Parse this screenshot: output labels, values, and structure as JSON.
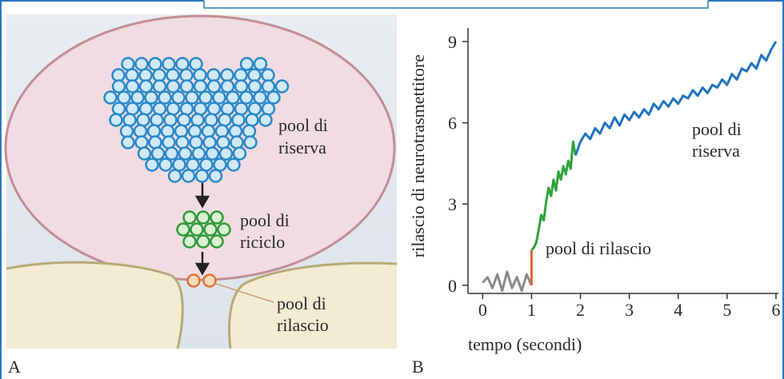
{
  "panel_a": {
    "letter": "A",
    "reserve_label": [
      "pool di",
      "riserva"
    ],
    "recycle_label": [
      "pool di",
      "riciclo"
    ],
    "release_label": [
      "pool di",
      "rilascio"
    ]
  },
  "chart_data": {
    "type": "line",
    "panel_letter": "B",
    "ylabel": "rilascio di neurotrasmettitore",
    "xlabel": "tempo (secondi)",
    "annotations": [
      "pool di rilascio",
      "pool di",
      "riserva"
    ],
    "xlim": [
      -0.3,
      6.05
    ],
    "ylim": [
      -0.3,
      9.5
    ],
    "xticks": [
      0,
      1,
      2,
      3,
      4,
      5,
      6
    ],
    "yticks": [
      0,
      3,
      6,
      9
    ],
    "series": [
      {
        "color": "#8a8a8a",
        "x": [
          0,
          0.1,
          0.2,
          0.3,
          0.4,
          0.5,
          0.6,
          0.7,
          0.8,
          0.9,
          1.0
        ],
        "values": [
          0.1,
          0.3,
          -0.1,
          0.4,
          -0.2,
          0.5,
          -0.1,
          0.3,
          -0.2,
          0.4,
          0.0
        ]
      },
      {
        "color": "#e0653a",
        "x": [
          1.0,
          1.0
        ],
        "values": [
          0.0,
          1.3
        ]
      },
      {
        "color": "#2fa33a",
        "x": [
          1.0,
          1.05,
          1.1,
          1.15,
          1.2,
          1.25,
          1.3,
          1.35,
          1.4,
          1.45,
          1.5,
          1.55,
          1.6,
          1.65,
          1.7,
          1.75,
          1.8,
          1.85,
          1.9
        ],
        "values": [
          1.3,
          1.4,
          1.6,
          2.1,
          2.6,
          2.4,
          3.1,
          3.6,
          3.3,
          3.9,
          3.5,
          4.2,
          3.9,
          4.4,
          4.1,
          4.6,
          4.3,
          5.3,
          4.8
        ]
      },
      {
        "color": "#1f74c0",
        "x": [
          1.9,
          2.0,
          2.1,
          2.2,
          2.3,
          2.4,
          2.5,
          2.6,
          2.7,
          2.8,
          2.9,
          3.0,
          3.1,
          3.2,
          3.3,
          3.4,
          3.5,
          3.6,
          3.7,
          3.8,
          3.9,
          4.0,
          4.1,
          4.2,
          4.3,
          4.4,
          4.5,
          4.6,
          4.7,
          4.8,
          4.9,
          5.0,
          5.1,
          5.2,
          5.3,
          5.4,
          5.5,
          5.6,
          5.7,
          5.8,
          5.9,
          6.0
        ],
        "values": [
          4.8,
          5.3,
          5.6,
          5.4,
          5.8,
          5.6,
          6.0,
          5.8,
          6.2,
          5.9,
          6.3,
          6.1,
          6.4,
          6.2,
          6.5,
          6.3,
          6.7,
          6.5,
          6.8,
          6.6,
          6.9,
          6.7,
          7.0,
          6.9,
          7.2,
          7.0,
          7.3,
          7.1,
          7.4,
          7.3,
          7.6,
          7.4,
          7.8,
          7.6,
          8.0,
          7.9,
          8.2,
          8.0,
          8.5,
          8.3,
          8.7,
          9.0
        ]
      }
    ]
  }
}
